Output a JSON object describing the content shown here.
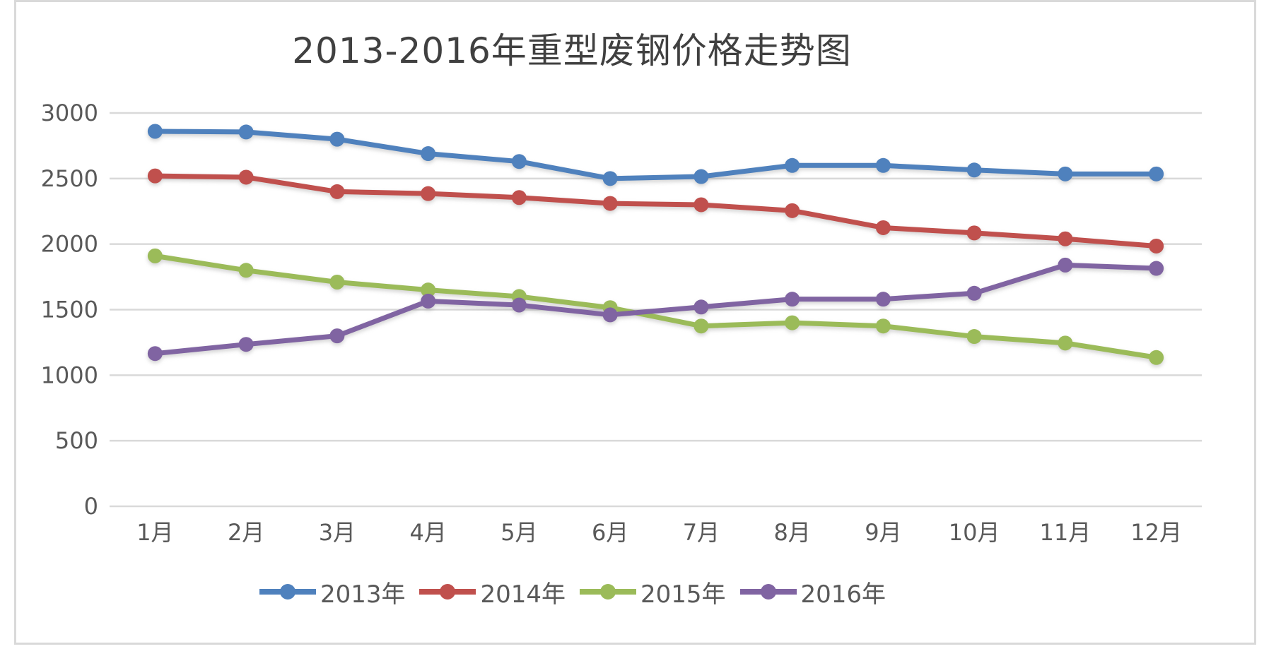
{
  "frame": {
    "background": "#ffffff",
    "border_color": "#d9d9d9"
  },
  "chart_data": {
    "type": "line",
    "title": "2013-2016年重型废钢价格走势图",
    "title_color": "#404040",
    "axis_text_color": "#595959",
    "gridline_color": "#d9d9d9",
    "grid": true,
    "legend_position": "bottom",
    "xlabel": "",
    "ylabel": "",
    "ylim": [
      0,
      3000
    ],
    "ytick_step": 500,
    "yticks": [
      0,
      500,
      1000,
      1500,
      2000,
      2500,
      3000
    ],
    "categories": [
      "1月",
      "2月",
      "3月",
      "4月",
      "5月",
      "6月",
      "7月",
      "8月",
      "9月",
      "10月",
      "11月",
      "12月"
    ],
    "series": [
      {
        "name": "2013年",
        "color": "#4f81bd",
        "values": [
          2860,
          2855,
          2800,
          2690,
          2630,
          2500,
          2515,
          2600,
          2600,
          2565,
          2535,
          2535
        ]
      },
      {
        "name": "2014年",
        "color": "#c0504d",
        "values": [
          2520,
          2510,
          2400,
          2385,
          2355,
          2310,
          2300,
          2255,
          2125,
          2085,
          2040,
          1985
        ]
      },
      {
        "name": "2015年",
        "color": "#9bbb59",
        "values": [
          1910,
          1800,
          1710,
          1650,
          1600,
          1515,
          1375,
          1400,
          1375,
          1295,
          1245,
          1135
        ]
      },
      {
        "name": "2016年",
        "color": "#8064a2",
        "values": [
          1165,
          1235,
          1300,
          1565,
          1535,
          1460,
          1520,
          1580,
          1580,
          1625,
          1840,
          1815
        ]
      }
    ]
  }
}
